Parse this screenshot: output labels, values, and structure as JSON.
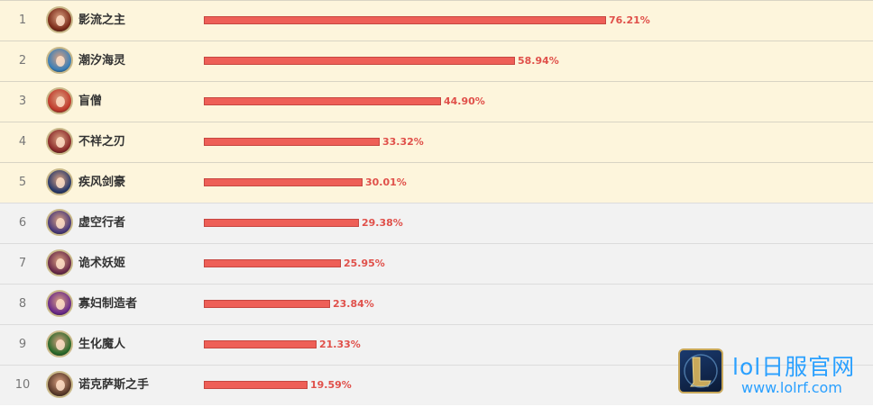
{
  "colors": {
    "bar": "#ee5f57",
    "percent_text": "#e0504a",
    "highlight_row": "#fdf5dc",
    "normal_row": "#f2f2f2"
  },
  "rows": [
    {
      "rank": "1",
      "name": "影流之主",
      "percent": "76.21%",
      "value": 76.21,
      "avatar_color": "#7a2a18",
      "avatar_icon": "champion-avatar"
    },
    {
      "rank": "2",
      "name": "潮汐海灵",
      "percent": "58.94%",
      "value": 58.94,
      "avatar_color": "#3a7fb8",
      "avatar_icon": "champion-avatar"
    },
    {
      "rank": "3",
      "name": "盲僧",
      "percent": "44.90%",
      "value": 44.9,
      "avatar_color": "#c0392b",
      "avatar_icon": "champion-avatar"
    },
    {
      "rank": "4",
      "name": "不祥之刃",
      "percent": "33.32%",
      "value": 33.32,
      "avatar_color": "#8a2a2a",
      "avatar_icon": "champion-avatar"
    },
    {
      "rank": "5",
      "name": "疾风剑豪",
      "percent": "30.01%",
      "value": 30.01,
      "avatar_color": "#2a3a6a",
      "avatar_icon": "champion-avatar"
    },
    {
      "rank": "6",
      "name": "虚空行者",
      "percent": "29.38%",
      "value": 29.38,
      "avatar_color": "#4a3a7a",
      "avatar_icon": "champion-avatar"
    },
    {
      "rank": "7",
      "name": "诡术妖姬",
      "percent": "25.95%",
      "value": 25.95,
      "avatar_color": "#6a2a4a",
      "avatar_icon": "champion-avatar"
    },
    {
      "rank": "8",
      "name": "寡妇制造者",
      "percent": "23.84%",
      "value": 23.84,
      "avatar_color": "#6a2a8a",
      "avatar_icon": "champion-avatar"
    },
    {
      "rank": "9",
      "name": "生化魔人",
      "percent": "21.33%",
      "value": 21.33,
      "avatar_color": "#2a6a2a",
      "avatar_icon": "champion-avatar"
    },
    {
      "rank": "10",
      "name": "诺克萨斯之手",
      "percent": "19.59%",
      "value": 19.59,
      "avatar_color": "#5a3a2a",
      "avatar_icon": "champion-avatar"
    }
  ],
  "watermark": {
    "title": "lol日服官网",
    "url": "www.lolrf.com",
    "logo_icon": "lol-logo-icon"
  }
}
